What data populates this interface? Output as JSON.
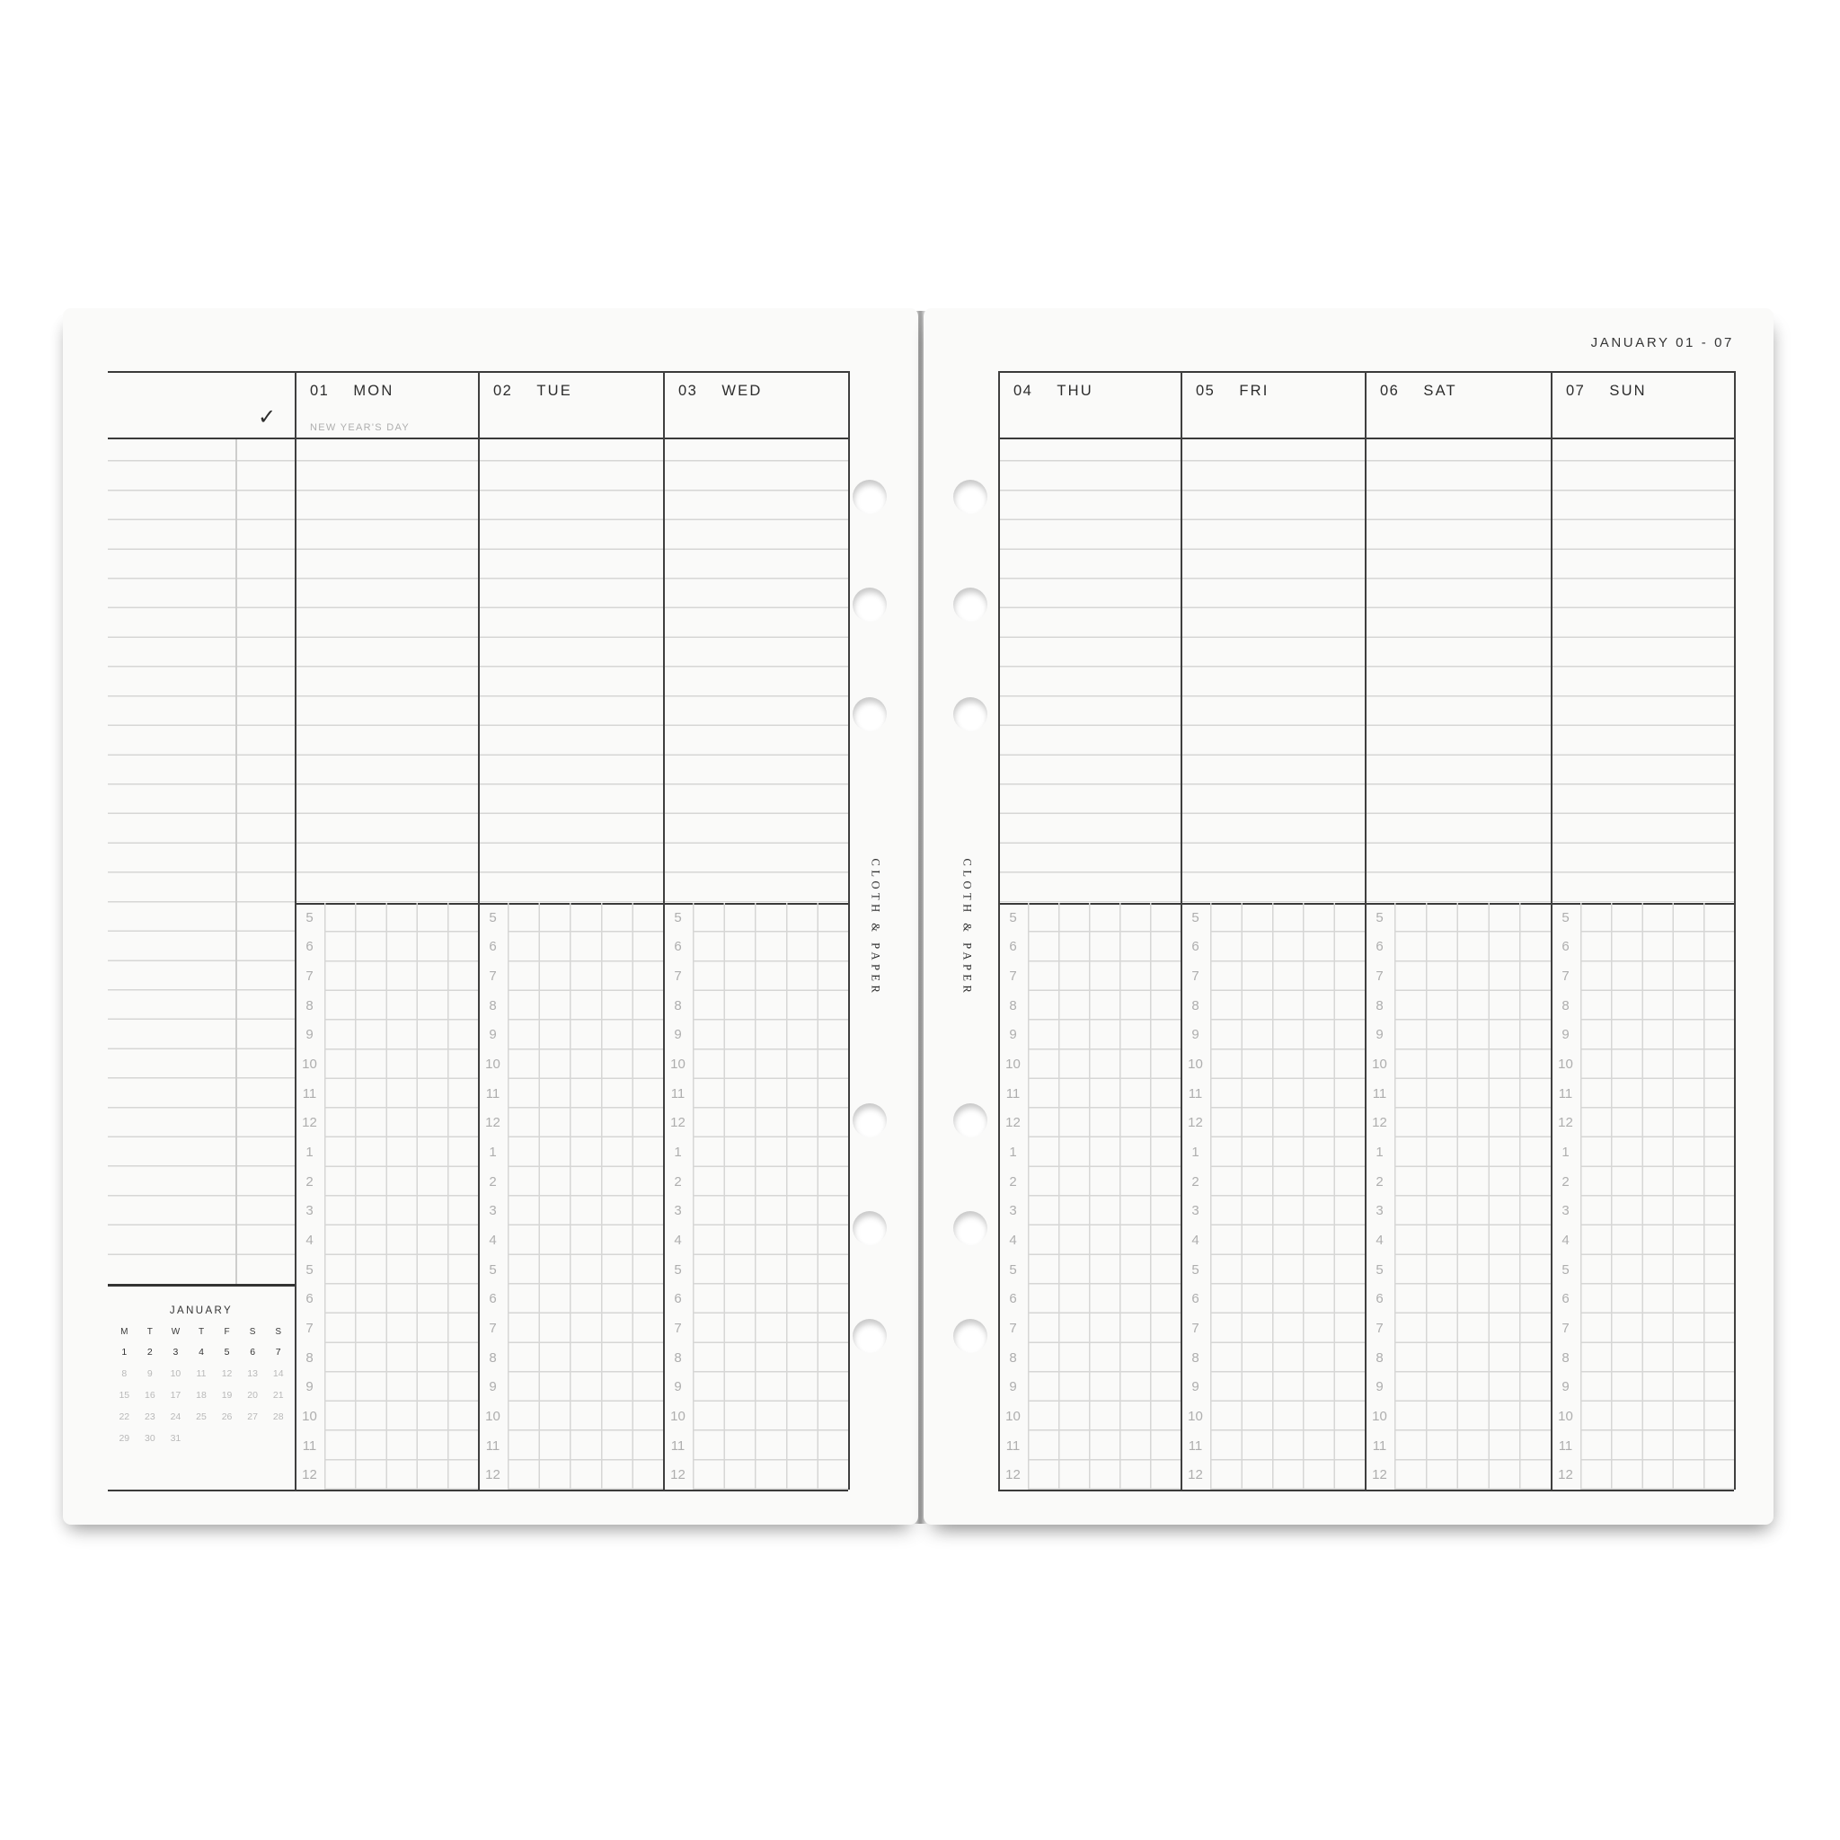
{
  "header": {
    "week_range": "JANUARY 01 - 07"
  },
  "logo": {
    "text": "CLOTH & PAPER"
  },
  "days": [
    {
      "num": "01",
      "name": "MON",
      "note": "NEW YEAR'S DAY",
      "page": "left"
    },
    {
      "num": "02",
      "name": "TUE",
      "note": "",
      "page": "left"
    },
    {
      "num": "03",
      "name": "WED",
      "note": "",
      "page": "left"
    },
    {
      "num": "04",
      "name": "THU",
      "note": "",
      "page": "right"
    },
    {
      "num": "05",
      "name": "FRI",
      "note": "",
      "page": "right"
    },
    {
      "num": "06",
      "name": "SAT",
      "note": "",
      "page": "right"
    },
    {
      "num": "07",
      "name": "SUN",
      "note": "",
      "page": "right"
    }
  ],
  "checkmark": "✓",
  "time_labels": [
    "5",
    "6",
    "7",
    "8",
    "9",
    "10",
    "11",
    "12",
    "1",
    "2",
    "3",
    "4",
    "5",
    "6",
    "7",
    "8",
    "9",
    "10",
    "11",
    "12"
  ],
  "mini_calendar": {
    "title": "JANUARY",
    "day_headers": [
      "M",
      "T",
      "W",
      "T",
      "F",
      "S",
      "S"
    ],
    "weeks": [
      [
        "1",
        "2",
        "3",
        "4",
        "5",
        "6",
        "7"
      ],
      [
        "8",
        "9",
        "10",
        "11",
        "12",
        "13",
        "14"
      ],
      [
        "15",
        "16",
        "17",
        "18",
        "19",
        "20",
        "21"
      ],
      [
        "22",
        "23",
        "24",
        "25",
        "26",
        "27",
        "28"
      ],
      [
        "29",
        "30",
        "31",
        "",
        "",
        "",
        ""
      ]
    ],
    "highlighted_week_index": 0
  },
  "colors": {
    "paper": "#fafaf9",
    "ink_dark": "#3a3a3a",
    "rule_light": "#d6d6d5",
    "text_dark": "#2c2c2c",
    "text_gray": "#aeaeae"
  }
}
